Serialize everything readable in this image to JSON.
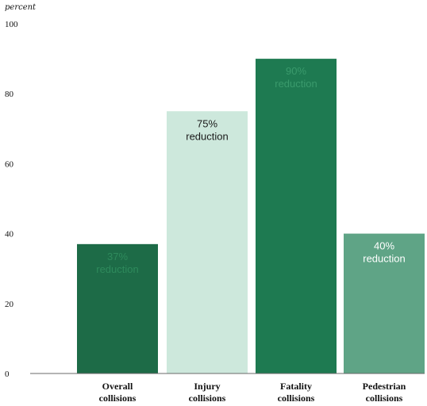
{
  "chart_data": {
    "type": "bar",
    "ylabel": "percent",
    "ylim": [
      0,
      100
    ],
    "yticks": [
      0,
      20,
      40,
      60,
      80,
      100
    ],
    "grid": false,
    "categories": [
      [
        "Overall",
        "collisions"
      ],
      [
        "Injury",
        "collisions"
      ],
      [
        "Fatality",
        "collisions"
      ],
      [
        "Pedestrian",
        "collisions"
      ]
    ],
    "values": [
      37,
      75,
      90,
      40
    ],
    "data_labels": [
      [
        "37%",
        "reduction"
      ],
      [
        "75%",
        "reduction"
      ],
      [
        "90%",
        "reduction"
      ],
      [
        "40%",
        "reduction"
      ]
    ],
    "bar_colors": [
      "#1d6b47",
      "#cde8dc",
      "#1e7a51",
      "#5fa486"
    ],
    "label_colors": [
      "#2e8a5c",
      "#1a1a1a",
      "#3a9a6c",
      "#ffffff"
    ]
  }
}
